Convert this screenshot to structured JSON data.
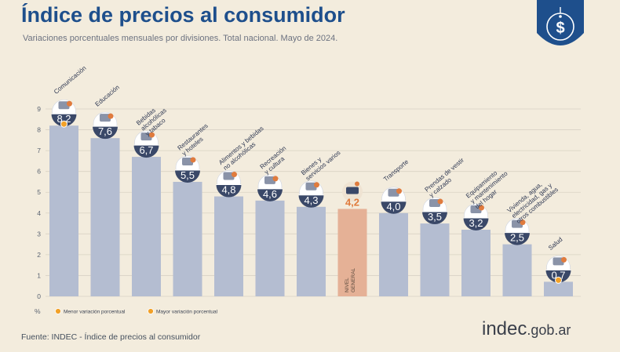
{
  "title": "Índice de precios al consumidor",
  "subtitle": "Variaciones porcentuales mensuales por divisiones. Total nacional. Mayo de 2024.",
  "source": "Fuente: INDEC - Índice de precios al consumidor",
  "brand": {
    "name": "indec",
    "domain": ".gob.ar"
  },
  "logo_icon": "price-tag-dollar-icon",
  "colors": {
    "background": "#f3ecdd",
    "title": "#1e4f8c",
    "bar": "#b4bdd1",
    "bar_general": "#e5b196",
    "badge": "#3a4868",
    "badge_general": "#e07b3d",
    "min_marker": "#f2a128",
    "max_marker": "#f2a128"
  },
  "legend": [
    {
      "label": "Menor variación porcentual",
      "marker": "min"
    },
    {
      "label": "Mayor variación porcentual",
      "marker": "max"
    }
  ],
  "chart_data": {
    "type": "bar",
    "categories": [
      "Comunicación",
      "Educación",
      "Bebidas alcohólicas y tabaco",
      "Restaurantes y hoteles",
      "Alimentos y bebidas no alcohólicas",
      "Recreación y cultura",
      "Bienes y servicios varios",
      "Nivel general",
      "Transporte",
      "Prendas de vestir y calzado",
      "Equipamiento y mantenimiento del hogar",
      "Vivienda, agua, electricidad, gas y otros combustibles",
      "Salud"
    ],
    "category_lines": [
      [
        "Comunicación"
      ],
      [
        "Educación"
      ],
      [
        "Bebidas",
        "alcohólicas",
        "y tabaco"
      ],
      [
        "Restaurantes",
        "y hoteles"
      ],
      [
        "Alimentos y bebidas",
        "no alcohólicas"
      ],
      [
        "Recreación",
        "y cultura"
      ],
      [
        "Bienes y",
        "servicios varios"
      ],
      [
        "NIVEL",
        "GENERAL"
      ],
      [
        "Transporte"
      ],
      [
        "Prendas de vestir",
        "y calzado"
      ],
      [
        "Equipamiento",
        "y mantenimiento",
        "del hogar"
      ],
      [
        "Vivienda, agua,",
        "electricidad, gas y",
        "otros combustibles"
      ],
      [
        "Salud"
      ]
    ],
    "values": [
      8.2,
      7.6,
      6.7,
      5.5,
      4.8,
      4.6,
      4.3,
      4.2,
      4.0,
      3.5,
      3.2,
      2.5,
      0.7
    ],
    "value_labels": [
      "8,2",
      "7,6",
      "6,7",
      "5,5",
      "4,8",
      "4,6",
      "4,3",
      "4,2",
      "4,0",
      "3,5",
      "3,2",
      "2,5",
      "0,7"
    ],
    "icons": [
      "smartphone-icon",
      "books-icon",
      "wine-glass-icon",
      "dining-plate-icon",
      "grocery-icon",
      "sun-landscape-icon",
      "personal-care-icon",
      "general-basket-icon",
      "car-icon",
      "shoe-icon",
      "furniture-icon",
      "lightbulb-icon",
      "first-aid-icon"
    ],
    "highlight_index": 7,
    "max_index": 0,
    "min_index": 12,
    "yticks": [
      0,
      1,
      2,
      3,
      4,
      5,
      6,
      7,
      8,
      9
    ],
    "ylabel": "%",
    "xlabel": "",
    "ylim": [
      0,
      9
    ],
    "grid": true
  }
}
